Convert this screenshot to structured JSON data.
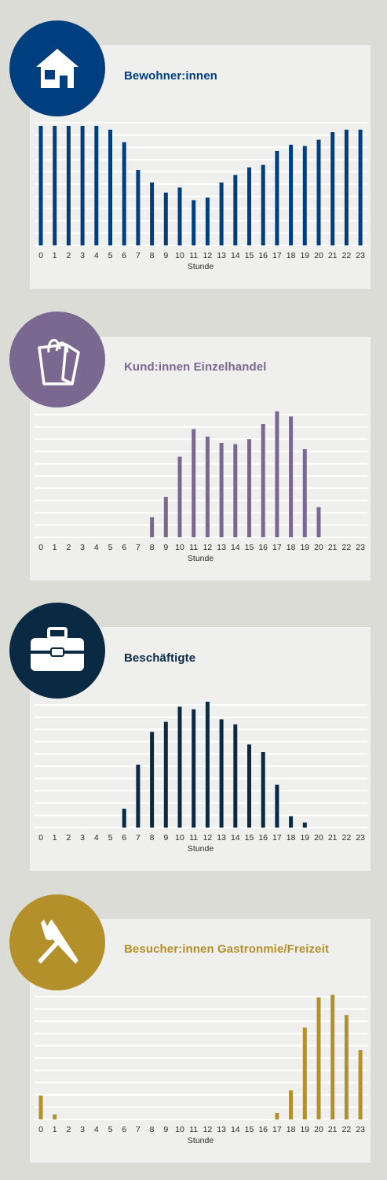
{
  "chart_data": [
    {
      "type": "bar",
      "title": "Bewohner:innen",
      "icon": "house-icon",
      "color": "#003f7f",
      "xlabel": "Stunde",
      "ylabel": "",
      "grid": true,
      "categories": [
        "0",
        "1",
        "2",
        "3",
        "4",
        "5",
        "6",
        "7",
        "8",
        "9",
        "10",
        "11",
        "12",
        "13",
        "14",
        "15",
        "16",
        "17",
        "18",
        "19",
        "20",
        "21",
        "22",
        "23"
      ],
      "values": [
        95,
        95,
        95,
        95,
        95,
        92,
        82,
        60,
        50,
        42,
        46,
        36,
        38,
        50,
        56,
        62,
        64,
        75,
        80,
        79,
        84,
        90,
        92,
        92
      ],
      "ylim": [
        0,
        100
      ]
    },
    {
      "type": "bar",
      "title": "Kund:innen Einzelhandel",
      "icon": "shopping-bag-icon",
      "color": "#7a6890",
      "xlabel": "Stunde",
      "ylabel": "",
      "grid": true,
      "categories": [
        "0",
        "1",
        "2",
        "3",
        "4",
        "5",
        "6",
        "7",
        "8",
        "9",
        "10",
        "11",
        "12",
        "13",
        "14",
        "15",
        "16",
        "17",
        "18",
        "19",
        "20",
        "21",
        "22",
        "23"
      ],
      "values": [
        0,
        0,
        0,
        0,
        0,
        0,
        0,
        0,
        16,
        32,
        64,
        86,
        80,
        75,
        74,
        78,
        90,
        100,
        96,
        70,
        24,
        0,
        0,
        0
      ],
      "ylim": [
        0,
        100
      ]
    },
    {
      "type": "bar",
      "title": "Beschäftigte",
      "icon": "briefcase-icon",
      "color": "#0a2a44",
      "xlabel": "Stunde",
      "ylabel": "",
      "grid": true,
      "categories": [
        "0",
        "1",
        "2",
        "3",
        "4",
        "5",
        "6",
        "7",
        "8",
        "9",
        "10",
        "11",
        "12",
        "13",
        "14",
        "15",
        "16",
        "17",
        "18",
        "19",
        "20",
        "21",
        "22",
        "23"
      ],
      "values": [
        0,
        0,
        0,
        0,
        0,
        0,
        15,
        50,
        76,
        84,
        96,
        94,
        100,
        86,
        82,
        66,
        60,
        34,
        9,
        4,
        0,
        0,
        0,
        0
      ],
      "ylim": [
        0,
        100
      ]
    },
    {
      "type": "bar",
      "title": "Besucher:innen Gastronmie/Freizeit",
      "icon": "fork-knife-icon",
      "color": "#b3902a",
      "xlabel": "Stunde",
      "ylabel": "",
      "grid": true,
      "categories": [
        "0",
        "1",
        "2",
        "3",
        "4",
        "5",
        "6",
        "7",
        "8",
        "9",
        "10",
        "11",
        "12",
        "13",
        "14",
        "15",
        "16",
        "17",
        "18",
        "19",
        "20",
        "21",
        "22",
        "23"
      ],
      "values": [
        19,
        4,
        0,
        0,
        0,
        0,
        0,
        0,
        0,
        0,
        0,
        0,
        0,
        0,
        0,
        0,
        0,
        5,
        23,
        73,
        97,
        99,
        83,
        55
      ],
      "ylim": [
        0,
        100
      ]
    }
  ]
}
